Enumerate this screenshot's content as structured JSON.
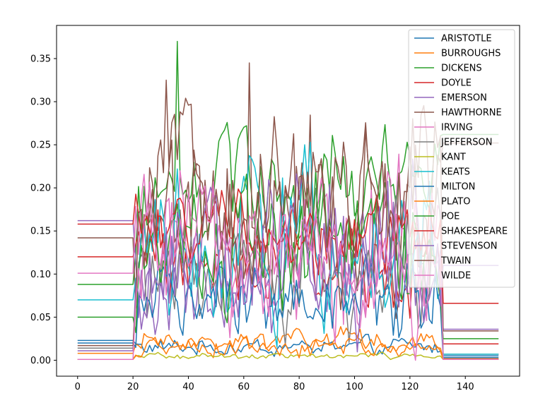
{
  "chart_data": {
    "type": "line",
    "title": "",
    "xlabel": "",
    "ylabel": "",
    "xlim": [
      -7.6,
      159.6
    ],
    "ylim": [
      -0.0185,
      0.3885
    ],
    "x_ticks": [
      0,
      20,
      40,
      60,
      80,
      100,
      120,
      140
    ],
    "y_ticks": [
      0.0,
      0.05,
      0.1,
      0.15,
      0.2,
      0.25,
      0.3,
      0.35
    ],
    "x_tick_labels": [
      "0",
      "20",
      "40",
      "60",
      "80",
      "100",
      "120",
      "140"
    ],
    "y_tick_labels": [
      "0.00",
      "0.05",
      "0.10",
      "0.15",
      "0.20",
      "0.25",
      "0.30",
      "0.35"
    ],
    "legend_position": "top-right",
    "x_range": [
      0,
      152
    ],
    "segments": {
      "flat_start_end": 20,
      "active_start": 20,
      "active_end": 132
    },
    "series": [
      {
        "name": "ARISTOTLE",
        "color": "#1f77b4",
        "start": 0.023,
        "end": 0.005,
        "lo": 0.0,
        "hi": 0.03
      },
      {
        "name": "BURROUGHS",
        "color": "#ff7f0e",
        "start": 0.008,
        "end": 0.002,
        "lo": 0.0,
        "hi": 0.04
      },
      {
        "name": "DICKENS",
        "color": "#2ca02c",
        "start": 0.088,
        "end": 0.262,
        "lo": 0.1,
        "hi": 0.29,
        "peak_x": 36,
        "peak_y": 0.37
      },
      {
        "name": "DOYLE",
        "color": "#d62728",
        "start": 0.12,
        "end": 0.019,
        "lo": 0.04,
        "hi": 0.2
      },
      {
        "name": "EMERSON",
        "color": "#9467bd",
        "start": 0.162,
        "end": 0.036,
        "lo": 0.01,
        "hi": 0.2
      },
      {
        "name": "HAWTHORNE",
        "color": "#8c564b",
        "start": 0.142,
        "end": 0.034,
        "lo": 0.02,
        "hi": 0.34,
        "peak_x": 62,
        "peak_y": 0.345
      },
      {
        "name": "IRVING",
        "color": "#e377c2",
        "start": 0.101,
        "end": 0.007,
        "lo": 0.0,
        "hi": 0.26
      },
      {
        "name": "JEFFERSON",
        "color": "#7f7f7f",
        "start": 0.014,
        "end": 0.007,
        "lo": 0.0,
        "hi": 0.2
      },
      {
        "name": "KANT",
        "color": "#bcbd22",
        "start": 0.001,
        "end": 0.001,
        "lo": 0.0,
        "hi": 0.01
      },
      {
        "name": "KEATS",
        "color": "#17becf",
        "start": 0.07,
        "end": 0.007,
        "lo": 0.0,
        "hi": 0.25,
        "peak_x": 84,
        "peak_y": 0.253
      },
      {
        "name": "MILTON",
        "color": "#1f77b4",
        "start": 0.02,
        "end": 0.003,
        "lo": 0.0,
        "hi": 0.14
      },
      {
        "name": "PLATO",
        "color": "#ff7f0e",
        "start": 0.001,
        "end": 0.001,
        "lo": 0.0,
        "hi": 0.03
      },
      {
        "name": "POE",
        "color": "#2ca02c",
        "start": 0.05,
        "end": 0.025,
        "lo": 0.02,
        "hi": 0.25
      },
      {
        "name": "SHAKESPEARE",
        "color": "#d62728",
        "start": 0.158,
        "end": 0.066,
        "lo": 0.08,
        "hi": 0.21
      },
      {
        "name": "STEVENSON",
        "color": "#9467bd",
        "start": 0.011,
        "end": 0.11,
        "lo": 0.0,
        "hi": 0.25
      },
      {
        "name": "TWAIN",
        "color": "#8c564b",
        "start": 0.017,
        "end": 0.252,
        "lo": 0.05,
        "hi": 0.32,
        "peak_x": 32,
        "peak_y": 0.325
      },
      {
        "name": "WILDE",
        "color": "#e377c2",
        "start": 0.001,
        "end": 0.001,
        "lo": 0.0,
        "hi": 0.23
      }
    ]
  }
}
